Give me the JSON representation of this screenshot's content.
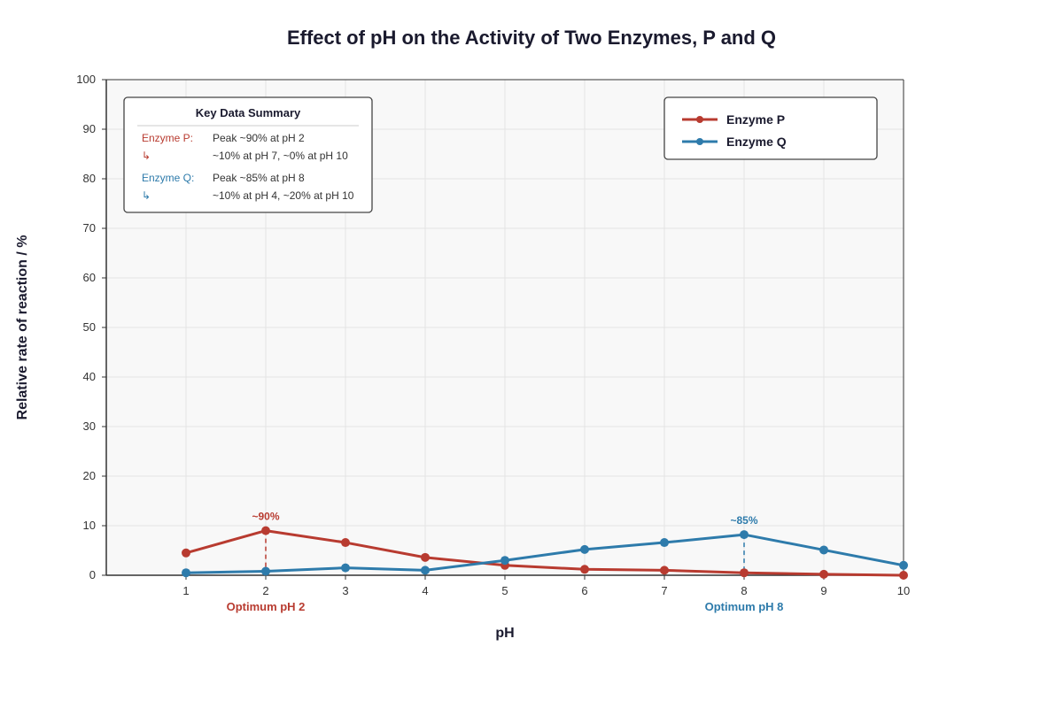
{
  "chart_data": {
    "type": "line",
    "title": "Effect of pH on the Activity of Two Enzymes, P and Q",
    "xlabel": "pH",
    "ylabel": "Relative rate of reaction / %",
    "x": [
      1,
      2,
      3,
      4,
      5,
      6,
      7,
      8,
      9,
      10
    ],
    "x_ticks": [
      "1",
      "2",
      "3",
      "4",
      "5",
      "6",
      "7",
      "8",
      "9",
      "10"
    ],
    "xlim": [
      0,
      10
    ],
    "ylim": [
      0,
      100
    ],
    "y_ticks": [
      "0",
      "10",
      "20",
      "30",
      "40",
      "50",
      "60",
      "70",
      "80",
      "90",
      "100"
    ],
    "grid": true,
    "legend_position": "top-right",
    "series": [
      {
        "name": "Enzyme P",
        "color": "#b83b30",
        "values": [
          4.5,
          9.0,
          6.6,
          3.6,
          2.0,
          1.2,
          1.0,
          0.5,
          0.2,
          0.0
        ]
      },
      {
        "name": "Enzyme Q",
        "color": "#2e7bab",
        "values": [
          0.5,
          0.8,
          1.5,
          1.0,
          3.0,
          5.2,
          6.6,
          8.2,
          5.1,
          2.0
        ]
      }
    ],
    "annotations": {
      "peak_p": {
        "x": 2,
        "y": 9.0,
        "label": "~90%",
        "color": "#b83b30"
      },
      "peak_q": {
        "x": 8,
        "y": 8.2,
        "label": "~85%",
        "color": "#2e7bab"
      },
      "optimum_p": {
        "x": 2,
        "label": "Optimum pH 2",
        "color": "#b83b30"
      },
      "optimum_q": {
        "x": 8,
        "label": "Optimum pH 8",
        "color": "#2e7bab"
      }
    },
    "summary_box": {
      "title": "Key Data Summary",
      "rows": [
        {
          "key": "Enzyme P:",
          "text": "Peak ~90% at pH 2",
          "color": "#b83b30"
        },
        {
          "key": "↳",
          "text": "~10% at pH 7, ~0% at pH 10",
          "color": "#b83b30"
        },
        {
          "key": "Enzyme Q:",
          "text": "Peak ~85% at pH 8",
          "color": "#2e7bab"
        },
        {
          "key": "↳",
          "text": "~10% at pH 4, ~20% at pH 10",
          "color": "#2e7bab"
        }
      ]
    }
  }
}
